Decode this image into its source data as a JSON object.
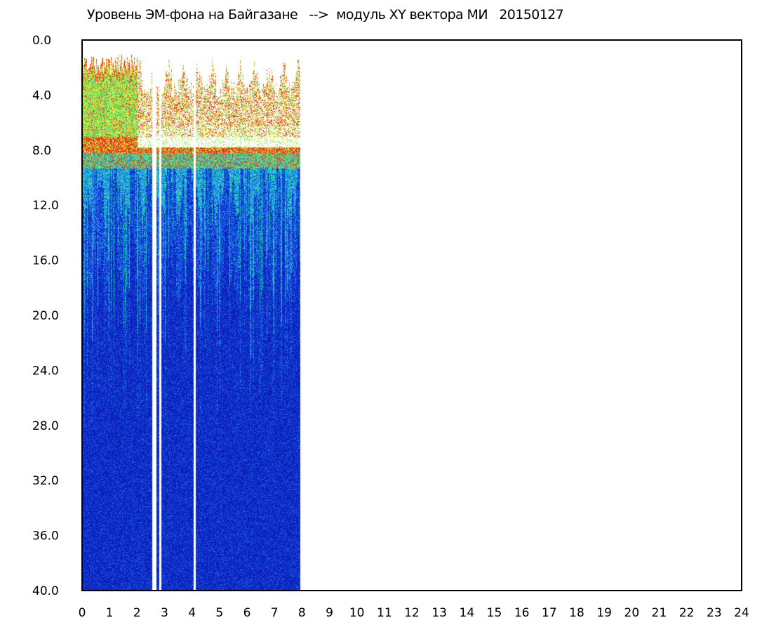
{
  "chart_data": {
    "type": "heatmap",
    "title": "Уровень ЭМ-фона на Байгазане   -->  модуль XY вектора МИ   20150127",
    "xlabel": "",
    "ylabel": "",
    "xlim": [
      0,
      24
    ],
    "ylim": [
      0.0,
      40.0
    ],
    "y_inverted": true,
    "grid": false,
    "x_ticks": [
      "0",
      "1",
      "2",
      "3",
      "4",
      "5",
      "6",
      "7",
      "8",
      "9",
      "10",
      "11",
      "12",
      "13",
      "14",
      "15",
      "16",
      "17",
      "18",
      "19",
      "20",
      "21",
      "22",
      "23",
      "24"
    ],
    "y_ticks": [
      "0.0",
      "4.0",
      "8.0",
      "12.0",
      "16.0",
      "20.0",
      "24.0",
      "28.0",
      "32.0",
      "36.0",
      "40.0"
    ],
    "data_x_range": [
      0.0,
      7.95
    ],
    "gaps_x": [
      [
        2.55,
        2.7
      ],
      [
        2.8,
        2.88
      ],
      [
        4.05,
        4.12
      ]
    ],
    "colormap": [
      "#0a1fb8",
      "#1b55e8",
      "#19b4e6",
      "#3ce6a0",
      "#7df04b",
      "#f5ec3a",
      "#f02d17",
      "#ffffff"
    ],
    "bands": [
      {
        "y_from": 0.8,
        "y_to": 7.0,
        "level": "high",
        "colors": [
          "#f02d17",
          "#f5ec3a",
          "#7df04b"
        ]
      },
      {
        "y_from": 7.0,
        "y_to": 9.5,
        "level": "transition",
        "colors": [
          "#f02d17",
          "#7df04b",
          "#19b4e6"
        ]
      },
      {
        "y_from": 9.5,
        "y_to": 40.0,
        "level": "low",
        "colors": [
          "#1b55e8",
          "#0a1fb8"
        ]
      }
    ]
  }
}
